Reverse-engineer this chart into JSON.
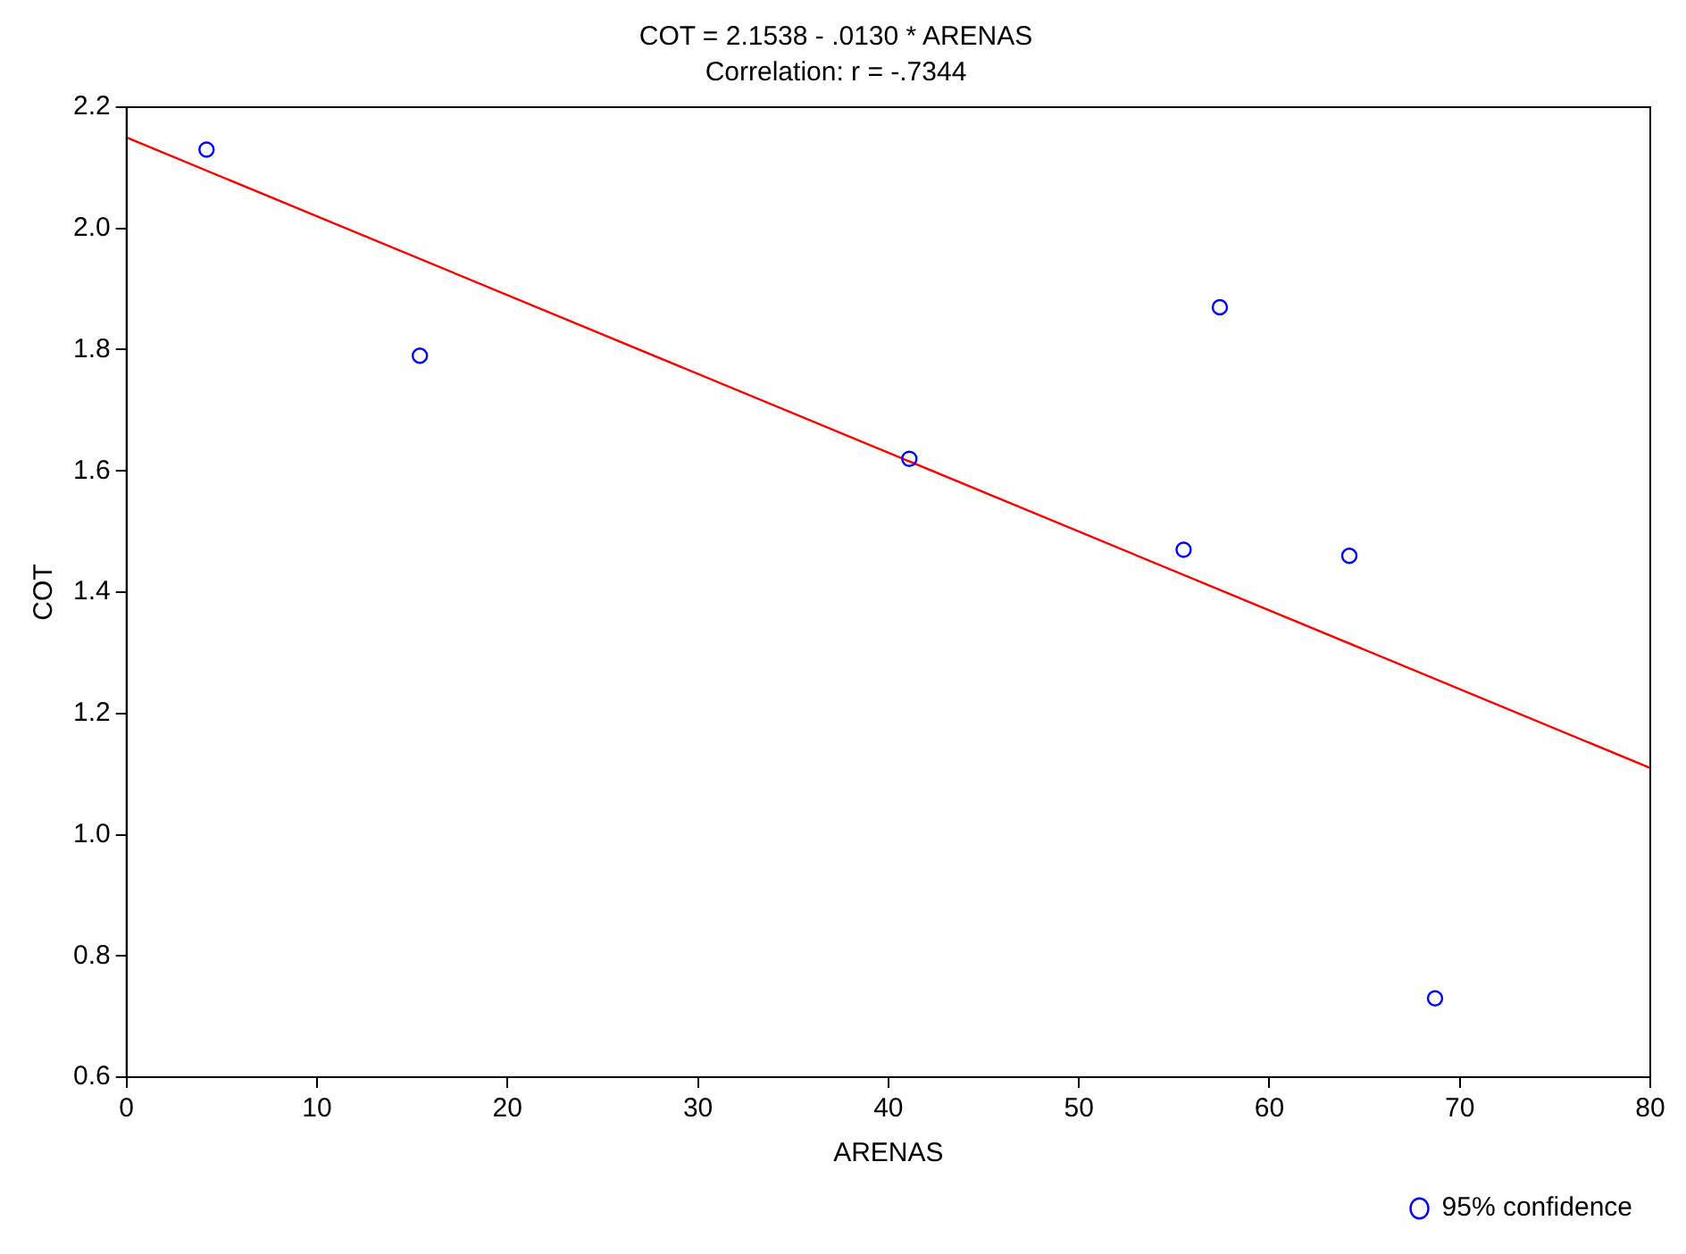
{
  "chart_data": {
    "type": "scatter",
    "title": "COT = 2.1538 - .0130 * ARENAS",
    "subtitle": "Correlation: r = -.7344",
    "xlabel": "ARENAS",
    "ylabel": "COT",
    "xlim": [
      0,
      80
    ],
    "xticks": [
      0,
      10,
      20,
      30,
      40,
      50,
      60,
      70,
      80
    ],
    "ylim": [
      0.6,
      2.2
    ],
    "yticks": [
      {
        "value": 0.6,
        "label": "0.6"
      },
      {
        "value": 0.8,
        "label": "0.8"
      },
      {
        "value": 1.0,
        "label": "1.0"
      },
      {
        "value": 1.2,
        "label": "1.2"
      },
      {
        "value": 1.4,
        "label": "1.4"
      },
      {
        "value": 1.6,
        "label": "1.6"
      },
      {
        "value": 1.8,
        "label": "1.8"
      },
      {
        "value": 2.0,
        "label": "2.0"
      },
      {
        "value": 2.2,
        "label": "2.2"
      }
    ],
    "grid": false,
    "legend": "bottom right",
    "marker": "circle",
    "series": [
      {
        "name": "95% confidence",
        "type": "scatter",
        "color": "#0000ff",
        "x": [
          4.2,
          15.4,
          41.1,
          55.5,
          57.4,
          64.2,
          68.7
        ],
        "values": [
          2.13,
          1.79,
          1.62,
          1.47,
          1.87,
          1.46,
          0.73
        ]
      },
      {
        "type": "line",
        "color": "#ff0000",
        "x": [
          0,
          80
        ],
        "values": [
          2.15,
          1.11
        ],
        "marker": "none",
        "line_style": "solid"
      }
    ]
  }
}
